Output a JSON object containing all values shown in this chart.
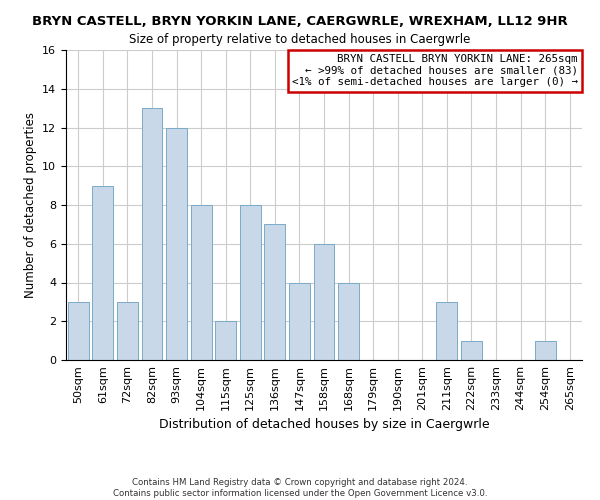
{
  "title": "BRYN CASTELL, BRYN YORKIN LANE, CAERGWRLE, WREXHAM, LL12 9HR",
  "subtitle": "Size of property relative to detached houses in Caergwrle",
  "xlabel": "Distribution of detached houses by size in Caergwrle",
  "ylabel": "Number of detached properties",
  "bar_labels": [
    "50sqm",
    "61sqm",
    "72sqm",
    "82sqm",
    "93sqm",
    "104sqm",
    "115sqm",
    "125sqm",
    "136sqm",
    "147sqm",
    "158sqm",
    "168sqm",
    "179sqm",
    "190sqm",
    "201sqm",
    "211sqm",
    "222sqm",
    "233sqm",
    "244sqm",
    "254sqm",
    "265sqm"
  ],
  "bar_values": [
    3,
    9,
    3,
    13,
    12,
    8,
    2,
    8,
    7,
    4,
    6,
    4,
    0,
    0,
    0,
    3,
    1,
    0,
    0,
    1,
    0
  ],
  "bar_color_normal": "#c8d8e8",
  "bar_edge_color": "#7aaac8",
  "ylim": [
    0,
    16
  ],
  "yticks": [
    0,
    2,
    4,
    6,
    8,
    10,
    12,
    14,
    16
  ],
  "legend_title": "BRYN CASTELL BRYN YORKIN LANE: 265sqm",
  "legend_line1": "← >99% of detached houses are smaller (83)",
  "legend_line2": "<1% of semi-detached houses are larger (0) →",
  "legend_box_color": "#ffffff",
  "legend_box_edge_color": "#cc0000",
  "footer_line1": "Contains HM Land Registry data © Crown copyright and database right 2024.",
  "footer_line2": "Contains public sector information licensed under the Open Government Licence v3.0.",
  "background_color": "#ffffff",
  "grid_color": "#cccccc"
}
